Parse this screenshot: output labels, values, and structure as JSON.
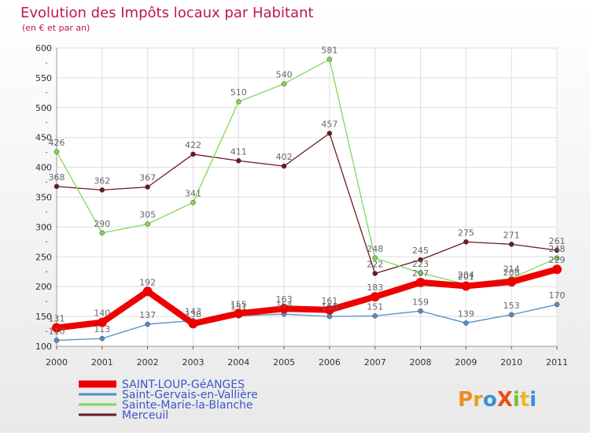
{
  "chart_data": {
    "type": "line",
    "title": "Evolution des Impôts locaux par Habitant",
    "subtitle": "(en € et par an)",
    "xlabel": "",
    "ylabel": "",
    "x": [
      "2000",
      "2001",
      "2002",
      "2003",
      "2004",
      "2005",
      "2006",
      "2007",
      "2008",
      "2009",
      "2010",
      "2011"
    ],
    "ylim": [
      100,
      600
    ],
    "yticks": [
      "100",
      "150",
      "200",
      "250",
      "300",
      "350",
      "400",
      "450",
      "500",
      "550",
      "600"
    ],
    "grid": true,
    "legend_position": "bottom-left",
    "series": [
      {
        "name": "Merceuil",
        "color": "#6b1a1f",
        "width": "thin",
        "values": [
          368,
          362,
          367,
          422,
          411,
          402,
          457,
          222,
          245,
          275,
          271,
          261
        ]
      },
      {
        "name": "Sainte-Marie-la-Blanche",
        "color": "#7ed957",
        "width": "thin",
        "values": [
          426,
          290,
          305,
          341,
          510,
          540,
          581,
          248,
          223,
          204,
          214,
          248
        ]
      },
      {
        "name": "Saint-Gervais-en-Vallière",
        "color": "#4f8fc9",
        "width": "thin",
        "values": [
          110,
          113,
          137,
          143,
          151,
          154,
          150,
          151,
          159,
          139,
          153,
          170
        ]
      },
      {
        "name": "SAINT-LOUP-GéANGES",
        "color": "#ee0000",
        "width": "thick",
        "values": [
          131,
          140,
          192,
          138,
          155,
          163,
          161,
          183,
          207,
          201,
          208,
          229
        ]
      }
    ],
    "data_labels": [
      "426",
      "368",
      "362",
      "290",
      "367",
      "305",
      "422",
      "341",
      "411",
      "510",
      "402",
      "540",
      "457",
      "581",
      "222",
      "248",
      "245",
      "275",
      "271",
      "261",
      "131",
      "110",
      "140",
      "113",
      "192",
      "137",
      "143",
      "138",
      "155",
      "151",
      "163",
      "154",
      "161",
      "150",
      "183",
      "151",
      "223",
      "207",
      "159",
      "204",
      "201",
      "139",
      "214",
      "208",
      "153",
      "248",
      "229",
      "170"
    ]
  },
  "legend": {
    "items": [
      {
        "label": "SAINT-LOUP-GéANGES",
        "color": "#ee0000"
      },
      {
        "label": "Saint-Gervais-en-Vallière",
        "color": "#4f8fc9"
      },
      {
        "label": "Sainte-Marie-la-Blanche",
        "color": "#7ed957"
      },
      {
        "label": "Merceuil",
        "color": "#6b1a1f"
      }
    ]
  },
  "logo": {
    "text": "ProXiti"
  }
}
